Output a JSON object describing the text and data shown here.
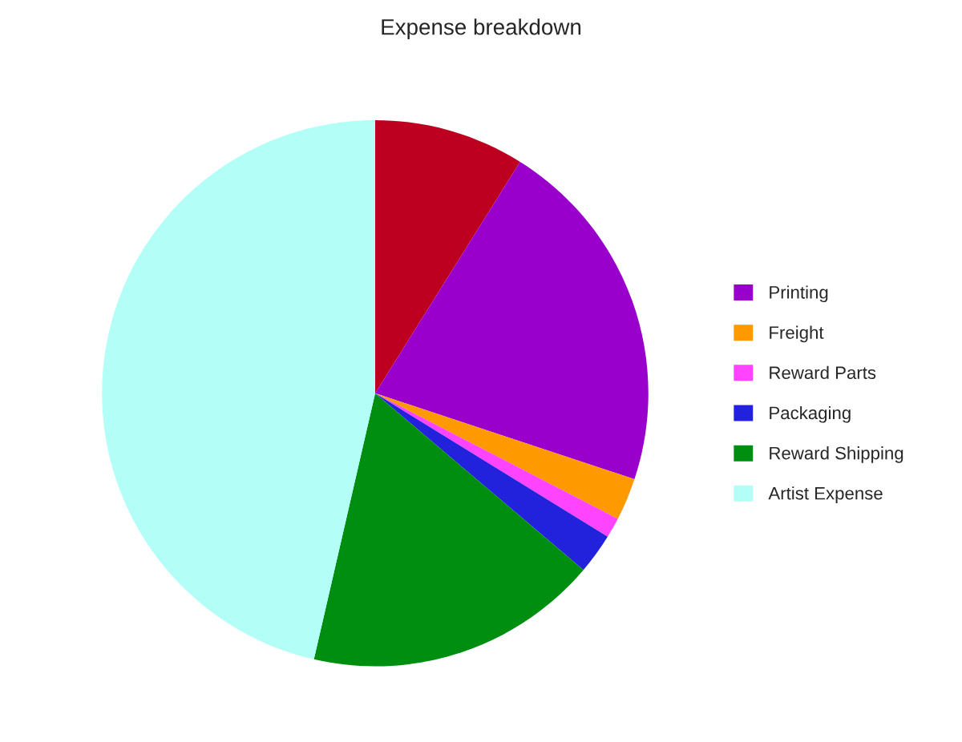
{
  "chart_data": {
    "type": "pie",
    "title": "Expense breakdown",
    "categories": [
      null,
      "Printing",
      "Freight",
      "Reward Parts",
      "Packaging",
      "Reward Shipping",
      "Artist Expense"
    ],
    "values": [
      8.9,
      21.2,
      2.5,
      1.2,
      2.4,
      17.4,
      46.4
    ],
    "colors": [
      "#be0020",
      "#9900cc",
      "#ff9900",
      "#ff44ff",
      "#2222dd",
      "#008e10",
      "#b3fff8"
    ],
    "legend": "right"
  }
}
